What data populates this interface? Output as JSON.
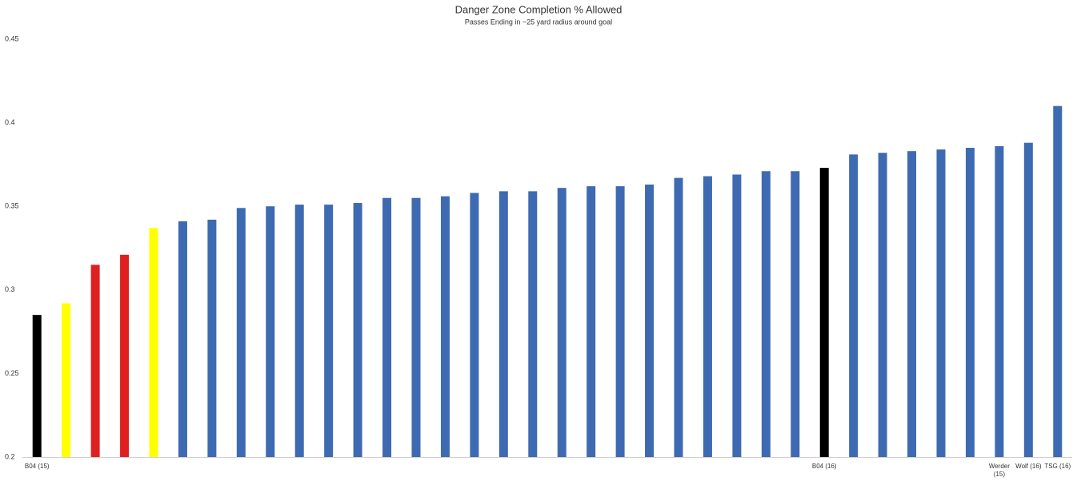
{
  "chart_data": {
    "type": "bar",
    "title": "Danger Zone Completion % Allowed",
    "subtitle": "Passes Ending in ~25 yard radius around goal",
    "categories": [
      "B04 (15)",
      null,
      null,
      null,
      null,
      null,
      null,
      null,
      null,
      null,
      null,
      null,
      null,
      null,
      null,
      null,
      null,
      null,
      null,
      null,
      null,
      null,
      null,
      null,
      null,
      null,
      null,
      "B04 (16)",
      null,
      null,
      null,
      null,
      null,
      "Werder (15)",
      "Wolf (16)",
      "TSG (16)"
    ],
    "values": [
      0.285,
      0.292,
      0.315,
      0.321,
      0.337,
      0.341,
      0.342,
      0.349,
      0.35,
      0.351,
      0.351,
      0.352,
      0.355,
      0.355,
      0.356,
      0.358,
      0.359,
      0.359,
      0.361,
      0.362,
      0.362,
      0.363,
      0.367,
      0.368,
      0.369,
      0.371,
      0.371,
      0.373,
      0.381,
      0.382,
      0.383,
      0.384,
      0.385,
      0.386,
      0.388,
      0.41
    ],
    "colors": [
      "#000000",
      "#ffff00",
      "#e02020",
      "#e02020",
      "#ffff00",
      "#3e6ab2",
      "#3e6ab2",
      "#3e6ab2",
      "#3e6ab2",
      "#3e6ab2",
      "#3e6ab2",
      "#3e6ab2",
      "#3e6ab2",
      "#3e6ab2",
      "#3e6ab2",
      "#3e6ab2",
      "#3e6ab2",
      "#3e6ab2",
      "#3e6ab2",
      "#3e6ab2",
      "#3e6ab2",
      "#3e6ab2",
      "#3e6ab2",
      "#3e6ab2",
      "#3e6ab2",
      "#3e6ab2",
      "#3e6ab2",
      "#000000",
      "#3e6ab2",
      "#3e6ab2",
      "#3e6ab2",
      "#3e6ab2",
      "#3e6ab2",
      "#3e6ab2",
      "#3e6ab2",
      "#3e6ab2"
    ],
    "ylim": [
      0.2,
      0.45
    ],
    "yticks": [
      0.2,
      0.25,
      0.3,
      0.35,
      0.4,
      0.45
    ],
    "grid": false
  }
}
